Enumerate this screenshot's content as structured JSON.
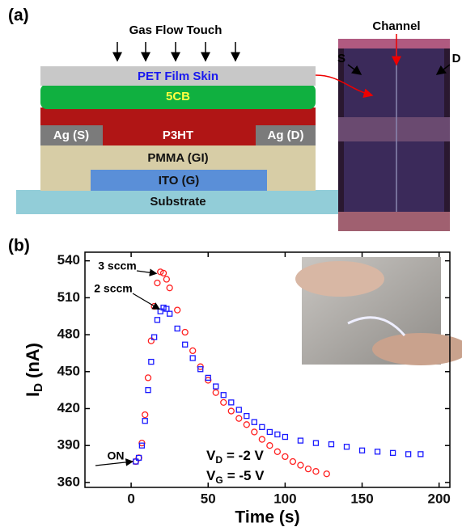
{
  "panel_a": {
    "label": "(a)",
    "gas_flow": "Gas Flow Touch",
    "layers": {
      "pet": "PET Film Skin",
      "lc": "5CB",
      "source": "Ag (S)",
      "semiconductor": "P3HT",
      "drain": "Ag (D)",
      "dielectric": "PMMA (GI)",
      "gate": "ITO (G)",
      "substrate": "Substrate"
    },
    "photo": {
      "channel": "Channel",
      "source": "S",
      "drain": "D"
    }
  },
  "chart_data": {
    "type": "scatter",
    "label": "(b)",
    "xlabel": "Time (s)",
    "ylabel": {
      "symbol": "I",
      "subscript": "D",
      "unit": "(nA)"
    },
    "xlim": [
      -30,
      207
    ],
    "ylim": [
      356,
      547
    ],
    "xticks": [
      0,
      50,
      100,
      150,
      200
    ],
    "yticks": [
      360,
      390,
      420,
      450,
      480,
      510,
      540
    ],
    "series": [
      {
        "name": "3 sccm",
        "color": "#ff2020",
        "marker": "circle",
        "x": [
          3,
          5,
          7,
          9,
          11,
          13,
          15,
          17,
          19,
          21,
          23,
          25,
          30,
          35,
          40,
          45,
          50,
          55,
          60,
          65,
          70,
          75,
          80,
          85,
          90,
          95,
          100,
          105,
          110,
          115,
          120,
          127
        ],
        "values": [
          377,
          380,
          392,
          415,
          445,
          475,
          503,
          522,
          531,
          530,
          525,
          518,
          500,
          482,
          467,
          454,
          443,
          433,
          425,
          418,
          412,
          407,
          401,
          395,
          390,
          385,
          381,
          377,
          374,
          371,
          369,
          367
        ]
      },
      {
        "name": "2 sccm",
        "color": "#1a1aff",
        "marker": "square",
        "x": [
          3,
          5,
          7,
          9,
          11,
          13,
          15,
          17,
          19,
          21,
          23,
          25,
          30,
          35,
          40,
          45,
          50,
          55,
          60,
          65,
          70,
          75,
          80,
          85,
          90,
          95,
          100,
          110,
          120,
          130,
          140,
          150,
          160,
          170,
          180,
          188
        ],
        "values": [
          377,
          380,
          390,
          410,
          435,
          458,
          478,
          492,
          499,
          502,
          501,
          497,
          485,
          472,
          461,
          452,
          445,
          438,
          431,
          425,
          419,
          414,
          409,
          405,
          401,
          399,
          397,
          394,
          392,
          391,
          389,
          386,
          385,
          384,
          383,
          383
        ]
      }
    ],
    "annotations": {
      "on": "ON",
      "vd": {
        "symbol": "V",
        "subscript": "D",
        "text": "= -2 V"
      },
      "vg": {
        "symbol": "V",
        "subscript": "G",
        "text": "= -5 V"
      }
    }
  }
}
